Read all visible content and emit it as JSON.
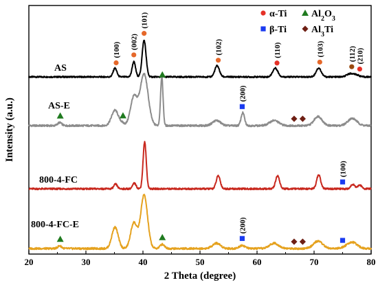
{
  "chart_data": {
    "type": "line",
    "xlabel": "2 Theta (degree)",
    "ylabel": "Intensity (a.u.)",
    "xlim": [
      20,
      80
    ],
    "x_ticks": [
      "20",
      "30",
      "40",
      "50",
      "60",
      "70",
      "80"
    ],
    "grid": false,
    "legend": {
      "placement": "top-right",
      "entries": [
        {
          "label": "α-Ti",
          "marker": "circle",
          "color": "#e53127"
        },
        {
          "label": "Al2O3",
          "marker": "triangle",
          "color": "#1f7a1f"
        },
        {
          "label": "β-Ti",
          "marker": "square",
          "color": "#1a3bf0"
        },
        {
          "label": "Al3Ti",
          "marker": "diamond",
          "color": "#6e1f14"
        }
      ]
    },
    "series": [
      {
        "name": "AS",
        "color": "#000000",
        "label_color": "#000000",
        "baseline": 0.0,
        "peaks": [
          {
            "x": 35.1,
            "h": 0.22,
            "w": 0.32
          },
          {
            "x": 38.4,
            "h": 0.38,
            "w": 0.3
          },
          {
            "x": 40.2,
            "h": 0.92,
            "w": 0.34
          },
          {
            "x": 53.0,
            "h": 0.28,
            "w": 0.4
          },
          {
            "x": 63.2,
            "h": 0.22,
            "w": 0.45
          },
          {
            "x": 70.8,
            "h": 0.22,
            "w": 0.45
          },
          {
            "x": 76.3,
            "h": 0.08,
            "w": 0.55
          },
          {
            "x": 77.4,
            "h": 0.05,
            "w": 0.5
          }
        ],
        "markers": [
          {
            "x": 35.3,
            "type": "circle",
            "color": "#e5682a"
          },
          {
            "x": 38.4,
            "type": "circle",
            "color": "#e5682a"
          },
          {
            "x": 40.2,
            "type": "circle",
            "color": "#e5682a"
          },
          {
            "x": 53.2,
            "type": "circle",
            "color": "#e5682a"
          },
          {
            "x": 63.5,
            "type": "circle",
            "color": "#e53127"
          },
          {
            "x": 71.0,
            "type": "circle",
            "color": "#e5682a"
          },
          {
            "x": 76.6,
            "type": "circle",
            "color": "#9a4a10"
          },
          {
            "x": 78.0,
            "type": "circle",
            "color": "#e53127"
          }
        ],
        "hkl": [
          {
            "x": 35.3,
            "text": "(100)"
          },
          {
            "x": 38.4,
            "text": "(002)"
          },
          {
            "x": 40.2,
            "text": "(101)"
          },
          {
            "x": 53.2,
            "text": "(102)"
          },
          {
            "x": 63.5,
            "text": "(110)"
          },
          {
            "x": 71.0,
            "text": "(103)"
          },
          {
            "x": 76.6,
            "text": "(112)"
          },
          {
            "x": 78.0,
            "text": "(210)"
          }
        ]
      },
      {
        "name": "AS-E",
        "color": "#8c8c8c",
        "label_color": "#8c8c8c",
        "baseline": 0.0,
        "peaks": [
          {
            "x": 25.4,
            "h": 0.06,
            "w": 0.35
          },
          {
            "x": 35.1,
            "h": 0.3,
            "w": 0.6
          },
          {
            "x": 36.4,
            "h": 0.04,
            "w": 0.4
          },
          {
            "x": 38.4,
            "h": 0.55,
            "w": 0.6
          },
          {
            "x": 40.2,
            "h": 1.0,
            "w": 0.7
          },
          {
            "x": 43.3,
            "h": 0.95,
            "w": 0.22
          },
          {
            "x": 52.9,
            "h": 0.1,
            "w": 0.7
          },
          {
            "x": 57.5,
            "h": 0.25,
            "w": 0.3
          },
          {
            "x": 63.0,
            "h": 0.1,
            "w": 0.8
          },
          {
            "x": 70.7,
            "h": 0.18,
            "w": 0.7
          },
          {
            "x": 76.7,
            "h": 0.14,
            "w": 0.8
          }
        ],
        "markers": [
          {
            "x": 25.5,
            "type": "triangle",
            "color": "#1f7a1f"
          },
          {
            "x": 36.5,
            "type": "triangle",
            "color": "#1f7a1f"
          },
          {
            "x": 43.4,
            "type": "triangle",
            "color": "#1f7a1f"
          },
          {
            "x": 57.4,
            "type": "square",
            "color": "#1a3bf0"
          },
          {
            "x": 66.5,
            "type": "diamond",
            "color": "#6e1f14"
          },
          {
            "x": 68.0,
            "type": "diamond",
            "color": "#6e1f14"
          }
        ],
        "hkl": [
          {
            "x": 57.4,
            "text": "(200)"
          }
        ]
      },
      {
        "name": "800-4-FC",
        "color": "#c8281e",
        "label_color": "#c8281e",
        "baseline": 0.0,
        "peaks": [
          {
            "x": 35.2,
            "h": 0.1,
            "w": 0.3
          },
          {
            "x": 38.5,
            "h": 0.12,
            "w": 0.3
          },
          {
            "x": 40.3,
            "h": 1.0,
            "w": 0.28
          },
          {
            "x": 53.2,
            "h": 0.28,
            "w": 0.35
          },
          {
            "x": 63.6,
            "h": 0.28,
            "w": 0.35
          },
          {
            "x": 70.8,
            "h": 0.3,
            "w": 0.35
          },
          {
            "x": 76.8,
            "h": 0.1,
            "w": 0.35
          },
          {
            "x": 78.0,
            "h": 0.08,
            "w": 0.35
          }
        ],
        "markers": [
          {
            "x": 75.0,
            "type": "square",
            "color": "#1a3bf0"
          }
        ],
        "hkl": [
          {
            "x": 75.0,
            "text": "(100)"
          }
        ]
      },
      {
        "name": "800-4-FC-E",
        "color": "#e5a21f",
        "label_color": "#e5a21f",
        "baseline": 0.0,
        "peaks": [
          {
            "x": 25.4,
            "h": 0.05,
            "w": 0.35
          },
          {
            "x": 35.1,
            "h": 0.4,
            "w": 0.55
          },
          {
            "x": 38.4,
            "h": 0.48,
            "w": 0.55
          },
          {
            "x": 40.2,
            "h": 1.0,
            "w": 0.6
          },
          {
            "x": 43.4,
            "h": 0.08,
            "w": 0.4
          },
          {
            "x": 52.9,
            "h": 0.1,
            "w": 0.7
          },
          {
            "x": 57.4,
            "h": 0.06,
            "w": 0.5
          },
          {
            "x": 63.0,
            "h": 0.1,
            "w": 0.8
          },
          {
            "x": 70.7,
            "h": 0.14,
            "w": 0.8
          },
          {
            "x": 76.6,
            "h": 0.12,
            "w": 0.9
          }
        ],
        "markers": [
          {
            "x": 25.5,
            "type": "triangle",
            "color": "#1f7a1f"
          },
          {
            "x": 43.4,
            "type": "triangle",
            "color": "#1f7a1f"
          },
          {
            "x": 57.4,
            "type": "square",
            "color": "#1a3bf0"
          },
          {
            "x": 66.5,
            "type": "diamond",
            "color": "#6e1f14"
          },
          {
            "x": 68.0,
            "type": "diamond",
            "color": "#6e1f14"
          },
          {
            "x": 75.0,
            "type": "square",
            "color": "#1a3bf0"
          }
        ],
        "hkl": [
          {
            "x": 57.4,
            "text": "(200)"
          }
        ]
      }
    ]
  }
}
